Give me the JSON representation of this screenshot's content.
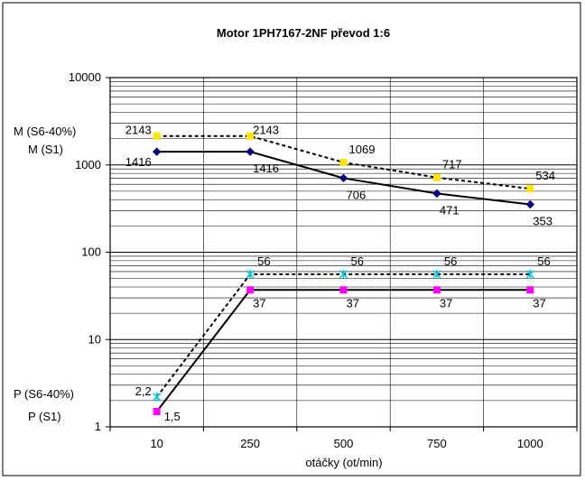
{
  "chart_data": {
    "type": "line",
    "title": "Motor 1PH7167-2NF převod 1:6",
    "xlabel": "otáčky (ot/min)",
    "ylabel": "",
    "yscale": "log",
    "ylim": [
      1,
      10000
    ],
    "categories": [
      "10",
      "250",
      "500",
      "750",
      "1000"
    ],
    "y_tick_labels": [
      "1",
      "10",
      "100",
      "1000",
      "10000"
    ],
    "grid": true,
    "series": [
      {
        "name": "M (S6-40%)",
        "style": "dashed",
        "marker": "square",
        "color": "#FFE500",
        "values": [
          2143,
          2143,
          1069,
          717,
          534
        ],
        "labels": [
          "2143",
          "2143",
          "1069",
          "717",
          "534"
        ]
      },
      {
        "name": "M (S1)",
        "style": "solid",
        "marker": "diamond",
        "color": "#000080",
        "values": [
          1416,
          1416,
          706,
          471,
          353
        ],
        "labels": [
          "1416",
          "1416",
          "706",
          "471",
          "353"
        ]
      },
      {
        "name": "P (S6-40%)",
        "style": "dashed",
        "marker": "star",
        "color": "#00C8D8",
        "values": [
          2.2,
          56,
          56,
          56,
          56
        ],
        "labels": [
          "2,2",
          "56",
          "56",
          "56",
          "56"
        ]
      },
      {
        "name": "P (S1)",
        "style": "solid",
        "marker": "square",
        "color": "#FF00FF",
        "values": [
          1.5,
          37,
          37,
          37,
          37
        ],
        "labels": [
          "1,5",
          "37",
          "37",
          "37",
          "37"
        ]
      }
    ]
  }
}
